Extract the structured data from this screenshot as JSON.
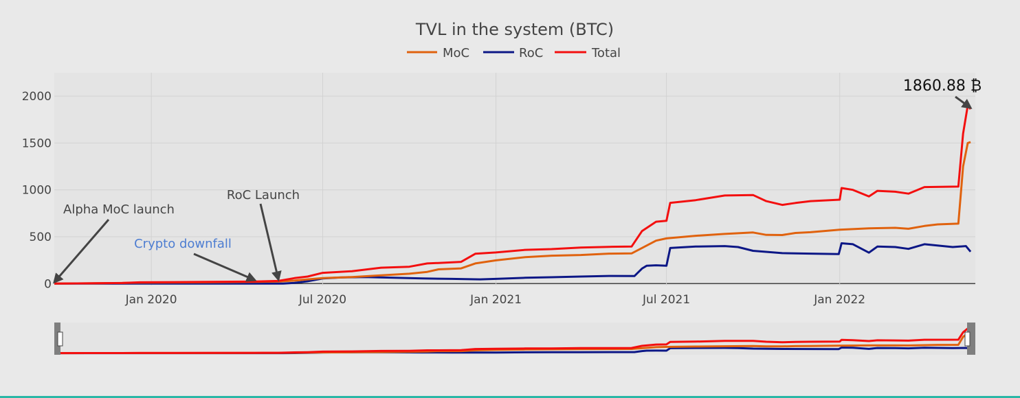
{
  "chart_data": {
    "type": "line",
    "title": "TVL in the system (BTC)",
    "xlabel": "",
    "ylabel": "",
    "x_axis": {
      "type": "date",
      "range": [
        "2019-09-20",
        "2022-05-25"
      ],
      "ticks": [
        {
          "date": "2020-01-01",
          "label": "Jan 2020"
        },
        {
          "date": "2020-07-01",
          "label": "Jul 2020"
        },
        {
          "date": "2021-01-01",
          "label": "Jan 2021"
        },
        {
          "date": "2021-07-01",
          "label": "Jul 2021"
        },
        {
          "date": "2022-01-01",
          "label": "Jan 2022"
        }
      ]
    },
    "y_axis": {
      "range": [
        -20,
        2250
      ],
      "ticks": [
        0,
        500,
        1000,
        1500,
        2000
      ],
      "tick_labels": [
        "0",
        "500",
        "1000",
        "1500",
        "2000"
      ]
    },
    "grid": true,
    "legend": {
      "position": "top-center",
      "orientation": "horizontal"
    },
    "series": [
      {
        "name": "MoC",
        "color": "#e0620e",
        "points": [
          [
            "2019-09-20",
            0
          ],
          [
            "2019-12-01",
            6
          ],
          [
            "2019-12-20",
            10
          ],
          [
            "2020-03-01",
            14
          ],
          [
            "2020-04-20",
            18
          ],
          [
            "2020-05-15",
            22
          ],
          [
            "2020-06-01",
            32
          ],
          [
            "2020-06-15",
            45
          ],
          [
            "2020-07-01",
            58
          ],
          [
            "2020-08-01",
            70
          ],
          [
            "2020-09-01",
            88
          ],
          [
            "2020-10-01",
            105
          ],
          [
            "2020-10-20",
            125
          ],
          [
            "2020-11-01",
            152
          ],
          [
            "2020-11-25",
            162
          ],
          [
            "2020-12-10",
            215
          ],
          [
            "2021-01-01",
            248
          ],
          [
            "2021-02-01",
            282
          ],
          [
            "2021-03-01",
            298
          ],
          [
            "2021-04-01",
            305
          ],
          [
            "2021-05-01",
            320
          ],
          [
            "2021-05-25",
            322
          ],
          [
            "2021-06-05",
            380
          ],
          [
            "2021-06-20",
            458
          ],
          [
            "2021-07-01",
            482
          ],
          [
            "2021-08-01",
            510
          ],
          [
            "2021-09-01",
            530
          ],
          [
            "2021-10-01",
            545
          ],
          [
            "2021-10-15",
            520
          ],
          [
            "2021-11-01",
            518
          ],
          [
            "2021-11-15",
            540
          ],
          [
            "2021-12-01",
            548
          ],
          [
            "2022-01-01",
            575
          ],
          [
            "2022-02-01",
            590
          ],
          [
            "2022-03-01",
            595
          ],
          [
            "2022-03-15",
            585
          ],
          [
            "2022-04-01",
            615
          ],
          [
            "2022-04-15",
            632
          ],
          [
            "2022-05-07",
            640
          ],
          [
            "2022-05-12",
            1250
          ],
          [
            "2022-05-17",
            1500
          ],
          [
            "2022-05-20",
            1510
          ]
        ]
      },
      {
        "name": "RoC",
        "color": "#0c1786",
        "points": [
          [
            "2019-09-20",
            0
          ],
          [
            "2020-05-20",
            0
          ],
          [
            "2020-06-01",
            8
          ],
          [
            "2020-06-15",
            25
          ],
          [
            "2020-07-01",
            55
          ],
          [
            "2020-07-20",
            65
          ],
          [
            "2020-08-15",
            70
          ],
          [
            "2020-09-15",
            62
          ],
          [
            "2020-10-15",
            55
          ],
          [
            "2020-11-15",
            50
          ],
          [
            "2020-12-15",
            45
          ],
          [
            "2021-01-01",
            50
          ],
          [
            "2021-02-01",
            62
          ],
          [
            "2021-03-01",
            68
          ],
          [
            "2021-04-01",
            75
          ],
          [
            "2021-05-01",
            82
          ],
          [
            "2021-05-28",
            80
          ],
          [
            "2021-06-05",
            160
          ],
          [
            "2021-06-10",
            190
          ],
          [
            "2021-06-20",
            195
          ],
          [
            "2021-07-01",
            190
          ],
          [
            "2021-07-05",
            380
          ],
          [
            "2021-08-01",
            395
          ],
          [
            "2021-09-01",
            400
          ],
          [
            "2021-09-15",
            390
          ],
          [
            "2021-10-01",
            350
          ],
          [
            "2021-11-01",
            325
          ],
          [
            "2021-12-01",
            320
          ],
          [
            "2021-12-31",
            315
          ],
          [
            "2022-01-03",
            430
          ],
          [
            "2022-01-15",
            420
          ],
          [
            "2022-02-01",
            330
          ],
          [
            "2022-02-10",
            395
          ],
          [
            "2022-03-01",
            390
          ],
          [
            "2022-03-15",
            370
          ],
          [
            "2022-04-01",
            420
          ],
          [
            "2022-05-01",
            390
          ],
          [
            "2022-05-15",
            400
          ],
          [
            "2022-05-20",
            340
          ]
        ]
      },
      {
        "name": "Total",
        "color": "#f30f0f",
        "points": [
          [
            "2019-09-20",
            0
          ],
          [
            "2019-12-01",
            6
          ],
          [
            "2019-12-20",
            14
          ],
          [
            "2020-03-01",
            18
          ],
          [
            "2020-04-20",
            22
          ],
          [
            "2020-05-15",
            28
          ],
          [
            "2020-06-01",
            58
          ],
          [
            "2020-06-15",
            75
          ],
          [
            "2020-07-01",
            115
          ],
          [
            "2020-08-01",
            132
          ],
          [
            "2020-09-01",
            170
          ],
          [
            "2020-10-01",
            180
          ],
          [
            "2020-10-20",
            215
          ],
          [
            "2020-11-01",
            220
          ],
          [
            "2020-11-25",
            232
          ],
          [
            "2020-12-10",
            318
          ],
          [
            "2021-01-01",
            332
          ],
          [
            "2021-02-01",
            360
          ],
          [
            "2021-03-01",
            368
          ],
          [
            "2021-04-01",
            385
          ],
          [
            "2021-05-01",
            392
          ],
          [
            "2021-05-25",
            395
          ],
          [
            "2021-06-05",
            560
          ],
          [
            "2021-06-20",
            660
          ],
          [
            "2021-07-01",
            670
          ],
          [
            "2021-07-05",
            862
          ],
          [
            "2021-08-01",
            890
          ],
          [
            "2021-09-01",
            940
          ],
          [
            "2021-10-01",
            945
          ],
          [
            "2021-10-15",
            880
          ],
          [
            "2021-11-01",
            840
          ],
          [
            "2021-11-15",
            860
          ],
          [
            "2021-12-01",
            880
          ],
          [
            "2022-01-01",
            895
          ],
          [
            "2022-01-03",
            1020
          ],
          [
            "2022-01-15",
            1000
          ],
          [
            "2022-02-01",
            930
          ],
          [
            "2022-02-10",
            990
          ],
          [
            "2022-03-01",
            980
          ],
          [
            "2022-03-15",
            960
          ],
          [
            "2022-04-01",
            1030
          ],
          [
            "2022-05-07",
            1035
          ],
          [
            "2022-05-12",
            1600
          ],
          [
            "2022-05-17",
            1900
          ],
          [
            "2022-05-20",
            1860.88
          ]
        ]
      }
    ],
    "annotations": [
      {
        "text": "Alpha MoC launch",
        "date": "2019-09-20",
        "value": 0,
        "color": "#444444"
      },
      {
        "text": "Crypto downfall",
        "date": "2020-04-20",
        "value": 22,
        "color": "#4d7dd1"
      },
      {
        "text": "RoC Launch",
        "date": "2020-05-15",
        "value": 28,
        "color": "#444444"
      },
      {
        "text": "1860.88 ₿",
        "date": "2022-05-20",
        "value": 1860.88,
        "color": "#111111"
      }
    ],
    "range_slider": true
  }
}
